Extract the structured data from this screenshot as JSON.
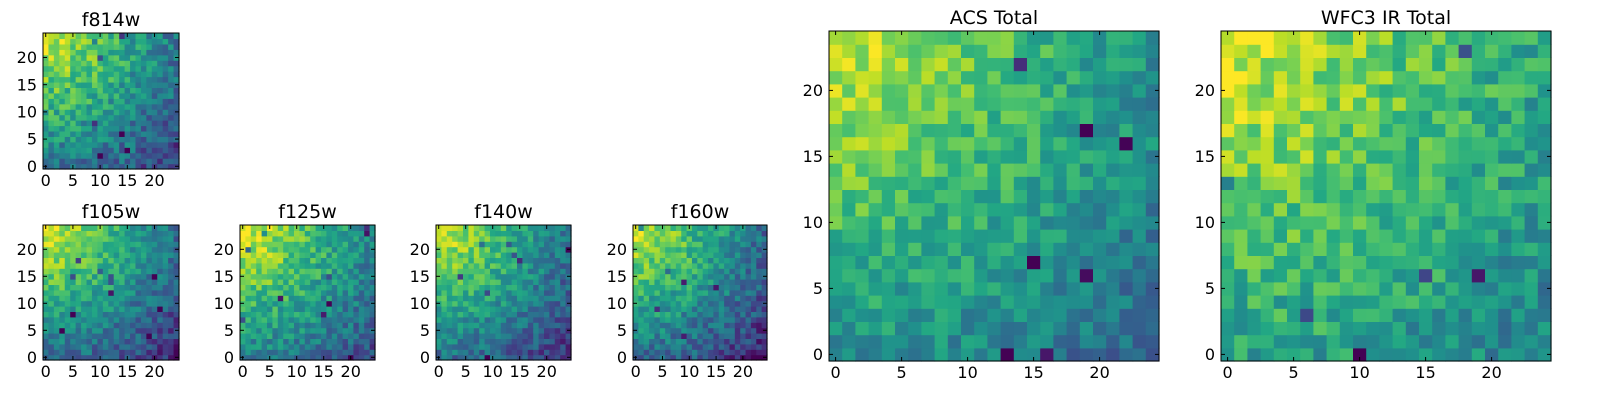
{
  "chart_data": [
    {
      "type": "heatmap",
      "title": "f814w",
      "seed": 11,
      "grid": false,
      "xticks": [
        "0",
        "5",
        "10",
        "15",
        "20"
      ],
      "yticks": [
        "0",
        "5",
        "10",
        "15",
        "20"
      ],
      "xlim": [
        0,
        24
      ],
      "ylim": [
        0,
        24
      ],
      "colormap": "viridis",
      "trend": {
        "corner_value": 0.95,
        "falloff": 1.05,
        "noise": 0.32
      }
    },
    {
      "type": "heatmap",
      "title": "f105w",
      "seed": 23,
      "grid": false,
      "xticks": [
        "0",
        "5",
        "10",
        "15",
        "20"
      ],
      "yticks": [
        "0",
        "5",
        "10",
        "15",
        "20"
      ],
      "xlim": [
        0,
        24
      ],
      "ylim": [
        0,
        24
      ],
      "colormap": "viridis",
      "trend": {
        "corner_value": 0.97,
        "falloff": 1.15,
        "noise": 0.28
      }
    },
    {
      "type": "heatmap",
      "title": "f125w",
      "seed": 37,
      "grid": false,
      "xticks": [
        "0",
        "5",
        "10",
        "15",
        "20"
      ],
      "yticks": [
        "0",
        "5",
        "10",
        "15",
        "20"
      ],
      "xlim": [
        0,
        24
      ],
      "ylim": [
        0,
        24
      ],
      "colormap": "viridis",
      "trend": {
        "corner_value": 0.97,
        "falloff": 1.0,
        "noise": 0.3
      }
    },
    {
      "type": "heatmap",
      "title": "f140w",
      "seed": 41,
      "grid": false,
      "xticks": [
        "0",
        "5",
        "10",
        "15",
        "20"
      ],
      "yticks": [
        "0",
        "5",
        "10",
        "15",
        "20"
      ],
      "xlim": [
        0,
        24
      ],
      "ylim": [
        0,
        24
      ],
      "colormap": "viridis",
      "trend": {
        "corner_value": 0.95,
        "falloff": 1.1,
        "noise": 0.28
      }
    },
    {
      "type": "heatmap",
      "title": "f160w",
      "seed": 53,
      "grid": false,
      "xticks": [
        "0",
        "5",
        "10",
        "15",
        "20"
      ],
      "yticks": [
        "0",
        "5",
        "10",
        "15",
        "20"
      ],
      "xlim": [
        0,
        24
      ],
      "ylim": [
        0,
        24
      ],
      "colormap": "viridis",
      "trend": {
        "corner_value": 0.95,
        "falloff": 1.15,
        "noise": 0.3
      }
    },
    {
      "type": "heatmap",
      "title": "ACS Total",
      "seed": 67,
      "grid": false,
      "xticks": [
        "0",
        "5",
        "10",
        "15",
        "20"
      ],
      "yticks": [
        "0",
        "5",
        "10",
        "15",
        "20"
      ],
      "xlim": [
        0,
        24
      ],
      "ylim": [
        0,
        24
      ],
      "colormap": "viridis",
      "trend": {
        "corner_value": 0.95,
        "falloff": 0.85,
        "noise": 0.26
      }
    },
    {
      "type": "heatmap",
      "title": "WFC3 IR Total",
      "seed": 79,
      "grid": false,
      "xticks": [
        "0",
        "5",
        "10",
        "15",
        "20"
      ],
      "yticks": [
        "0",
        "5",
        "10",
        "15",
        "20"
      ],
      "xlim": [
        0,
        24
      ],
      "ylim": [
        0,
        24
      ],
      "colormap": "viridis",
      "trend": {
        "corner_value": 0.95,
        "falloff": 0.7,
        "noise": 0.3
      }
    }
  ]
}
